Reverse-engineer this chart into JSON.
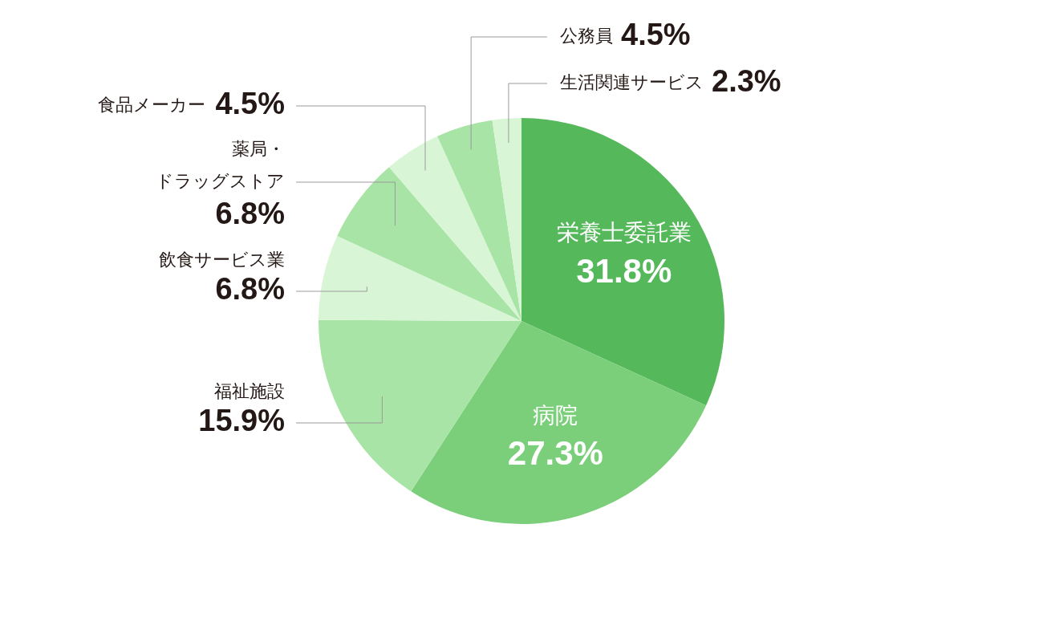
{
  "chart_data": {
    "type": "pie",
    "categories": [
      "栄養士委託業",
      "病院",
      "福祉施設",
      "飲食サービス業",
      "薬局・ドラッグストア",
      "食品メーカー",
      "公務員",
      "生活関連サービス"
    ],
    "values": [
      31.8,
      27.3,
      15.9,
      6.8,
      6.8,
      4.5,
      4.5,
      2.3
    ],
    "value_labels": [
      "31.8%",
      "27.3%",
      "15.9%",
      "6.8%",
      "6.8%",
      "4.5%",
      "4.5%",
      "2.3%"
    ],
    "colors": [
      "#55b85a",
      "#7bcf7a",
      "#a8e4a5",
      "#d8f6d5",
      "#a8e4a5",
      "#d8f6d5",
      "#a8e4a5",
      "#d8f6d5"
    ],
    "legend": false
  }
}
